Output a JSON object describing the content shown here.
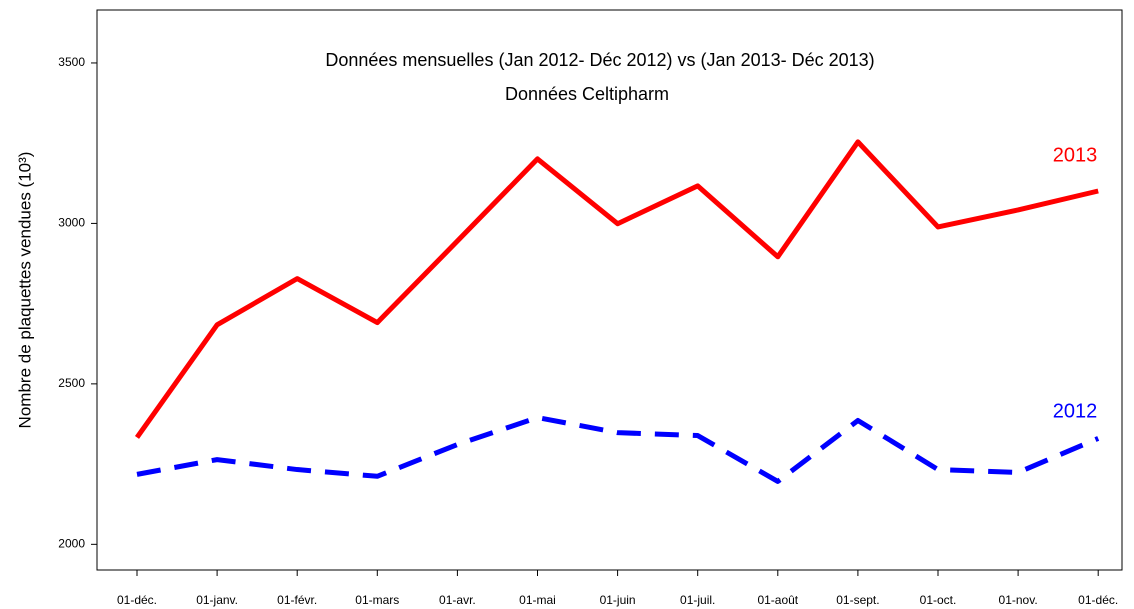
{
  "chart_data": {
    "type": "line",
    "title": "Données mensuelles (Jan 2012- Déc 2012) vs (Jan 2013- Déc 2013)",
    "subtitle": "Données Celtipharm",
    "y_label": "Nombre de plaquettes vendues (10³)",
    "categories": [
      "01-déc.",
      "01-janv.",
      "01-févr.",
      "01-mars",
      "01-avr.",
      "01-mai",
      "01-juin",
      "01-juil.",
      "01-août",
      "01-sept.",
      "01-oct.",
      "01-nov.",
      "01-déc."
    ],
    "series": [
      {
        "name": "2013",
        "color": "#ff0000",
        "dash": false,
        "values": [
          2333,
          2684,
          2828,
          2691,
          2945,
          3201,
          2999,
          3117,
          2896,
          3254,
          2989,
          3042,
          3101
        ]
      },
      {
        "name": "2012",
        "color": "#0000ff",
        "dash": true,
        "values": [
          2218,
          2264,
          2233,
          2212,
          2311,
          2395,
          2348,
          2339,
          2196,
          2386,
          2233,
          2224,
          2330
        ]
      }
    ],
    "ylim": [
      1920,
      3665
    ],
    "yticks": [
      2000,
      2500,
      3000,
      3500
    ],
    "grid": false
  }
}
